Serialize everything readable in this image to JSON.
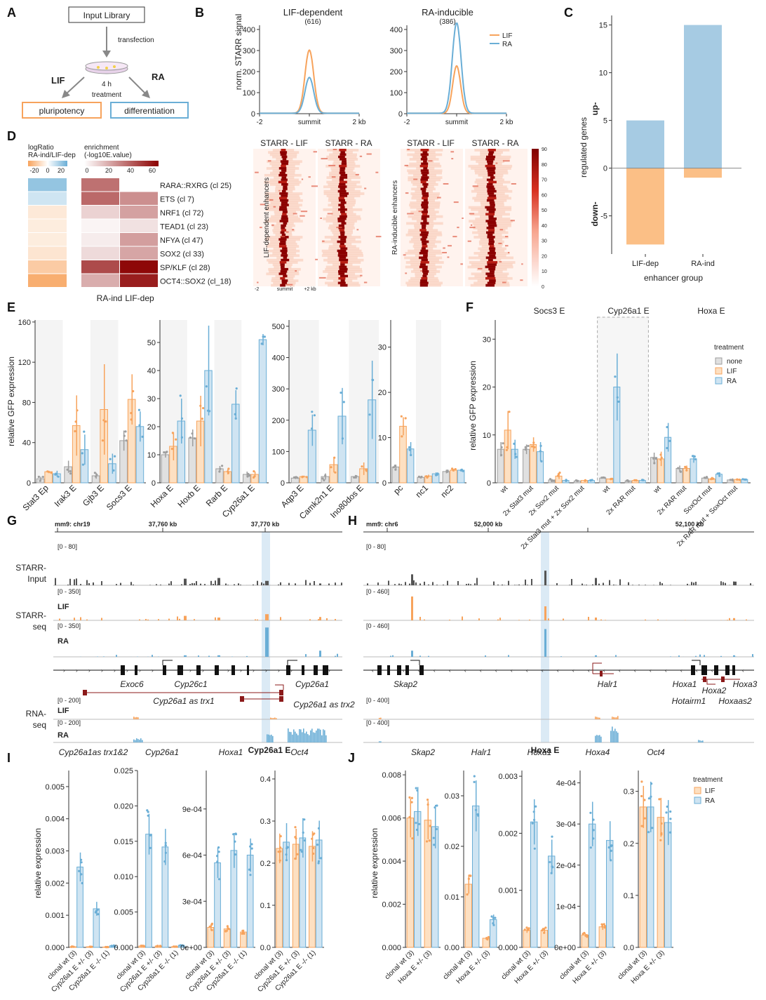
{
  "colors": {
    "lif": "#f7a35c",
    "lif_fill": "#fde0c2",
    "ra": "#6aaed6",
    "ra_fill": "#cfe4f2",
    "none": "#9e9e9e",
    "none_fill": "#e0e0e0",
    "heat_dark": "#8b0000",
    "track_input": "#555555",
    "starr_red": "#a40000",
    "anti_red": "#8b1a1a"
  },
  "panelA": {
    "letter": "A",
    "input_library": "Input Library",
    "transfection": "transfection",
    "lif": "LIF",
    "ra": "RA",
    "treatment_time": "4 h",
    "treatment": "treatment",
    "pluripotency": "pluripotency",
    "differentiation": "differentiation"
  },
  "panelB": {
    "letter": "B",
    "ylabel": "norm. STARR signal",
    "left_title": "LIF-dependent",
    "left_count": "(616)",
    "right_title": "RA-inducible",
    "right_count": "(386)",
    "x_ticks": [
      "-2",
      "summit",
      "2 kb"
    ],
    "heat_titles": [
      "STARR - LIF",
      "STARR - RA",
      "STARR - LIF",
      "STARR - RA"
    ],
    "heat_ylabel_left": "LIF-dependent enhancers",
    "heat_ylabel_right": "RA-inducible enhancers",
    "heat_x_ticks": [
      "-2",
      "summit",
      "+2 kb"
    ],
    "colorbar_ticks": [
      "90",
      "80",
      "70",
      "60",
      "50",
      "40",
      "30",
      "20",
      "10",
      "0"
    ]
  },
  "panelC": {
    "letter": "C",
    "ylabel": "regulated genes",
    "up": "up-",
    "down": "down-",
    "xlabel": "enhancer group"
  },
  "panelD": {
    "letter": "D",
    "legend1_title_1": "logRatio",
    "legend1_title_2": "RA-ind/LIF-dep",
    "legend1_ticks": [
      "-20",
      "0",
      "20"
    ],
    "legend2_title_1": "enrichment",
    "legend2_title_2": "(-log10E.value)",
    "legend2_ticks": [
      "0",
      "20",
      "40",
      "60"
    ],
    "col_labels": [
      "RA-ind",
      "LIF-dep"
    ],
    "motifs": [
      "RARA::RXRG (cl 25)",
      "ETS (cl 7)",
      "NRF1 (cl 72)",
      "TEAD1 (cl 23)",
      "NFYA (cl 47)",
      "SOX2 (cl 33)",
      "SP/KLF (cl 28)",
      "OCT4::SOX2 (cl_18)"
    ],
    "logratio": [
      18,
      8,
      -6,
      -5,
      -5,
      -7,
      -14,
      -22
    ],
    "enrich_ra": [
      38,
      40,
      12,
      3,
      5,
      10,
      48,
      22
    ],
    "enrich_lif": [
      0,
      30,
      25,
      8,
      26,
      24,
      66,
      60
    ]
  },
  "panelE": {
    "letter": "E",
    "ylabel": "relative GFP expression"
  },
  "panelF": {
    "letter": "F",
    "ylabel": "relative GFP expression",
    "group_titles": [
      "Socs3 E",
      "Cyp26a1 E",
      "Hoxa E"
    ],
    "legend_title": "treatment",
    "legend_items": [
      "none",
      "LIF",
      "RA"
    ]
  },
  "panelG": {
    "letter": "G",
    "genome": "mm9: chr19",
    "coords": [
      "37,760 kb",
      "37,770 kb"
    ],
    "track_labels": [
      "STARR-",
      "Input",
      "STARR-",
      "seq",
      "LIF",
      "RA",
      "RNA-",
      "seq",
      "LIF",
      "RA"
    ],
    "ranges": [
      "[0 - 80]",
      "[0 - 350]",
      "[0 - 350]",
      "[0 - 200]",
      "[0 - 200]"
    ],
    "genes": [
      "Exoc6",
      "Cyp26c1",
      "Cyp26a1"
    ],
    "antisense": [
      "Cyp26a1 as trx1",
      "Cyp26a1 as trx2"
    ],
    "highlight_label": "Cyp26a1 E"
  },
  "panelH": {
    "letter": "H",
    "genome": "mm9: chr6",
    "coords": [
      "52,000 kb",
      "52,100 kb"
    ],
    "ranges": [
      "[0 - 80]",
      "[0 - 460]",
      "[0 - 460]",
      "[0 - 400]",
      "[0 - 400]"
    ],
    "genes": [
      "Skap2",
      "Halr1",
      "Hoxa1",
      "Hoxa2",
      "Hoxa3"
    ],
    "antisense": [
      "Hotairm1",
      "Hoxaas2"
    ],
    "highlight_label": "Hoxa E"
  },
  "panelI": {
    "letter": "I",
    "ylabel": "relative expression",
    "xcats": [
      "clonal wt (3)",
      "Cyp26a1 E +/- (3)",
      "Cyp26a1 E -/- (1)"
    ]
  },
  "panelJ": {
    "letter": "J",
    "ylabel": "relative expression",
    "xcats": [
      "clonal wt (3)",
      "Hoxa E +/- (3)"
    ],
    "legend_title": "treatment",
    "legend_items": [
      "LIF",
      "RA"
    ]
  },
  "chart_data": [
    {
      "panel": "B-left",
      "type": "line",
      "title": "LIF-dependent",
      "subtitle": "(616)",
      "ylabel": "norm. STARR signal",
      "ylim": [
        0,
        420
      ],
      "yticks": [
        0,
        100,
        200,
        300,
        400
      ],
      "x_ticks": [
        "-2",
        "summit",
        "2 kb"
      ],
      "series": [
        {
          "name": "LIF",
          "peak": 300,
          "width": 0.22
        },
        {
          "name": "RA",
          "peak": 170,
          "width": 0.22
        }
      ]
    },
    {
      "panel": "B-right",
      "type": "line",
      "title": "RA-inducible",
      "subtitle": "(386)",
      "ylim": [
        0,
        420
      ],
      "yticks": [
        0,
        100,
        200,
        300,
        400
      ],
      "x_ticks": [
        "-2",
        "summit",
        "2 kb"
      ],
      "series": [
        {
          "name": "LIF",
          "peak": 225,
          "width": 0.2
        },
        {
          "name": "RA",
          "peak": 430,
          "width": 0.22
        }
      ]
    },
    {
      "panel": "C",
      "type": "bar",
      "ylabel": "regulated genes",
      "xlabel": "enhancer group",
      "categories": [
        "LIF-dep",
        "RA-ind"
      ],
      "ylim": [
        -9,
        16
      ],
      "yticks": [
        -5,
        0,
        5,
        10,
        15
      ],
      "series": [
        {
          "name": "up-",
          "values": [
            5,
            15
          ]
        },
        {
          "name": "down-",
          "values": [
            -8,
            -1
          ]
        }
      ]
    },
    {
      "panel": "E1",
      "type": "bar",
      "ylim": [
        0,
        162
      ],
      "yticks": [
        0,
        40,
        80,
        120,
        160
      ],
      "categories": [
        "Stat3 Ep",
        "Irak3 E",
        "Gjb3 E",
        "Socs3 E"
      ],
      "shaded": [
        0,
        2
      ],
      "series": [
        {
          "name": "none",
          "values": [
            4,
            16,
            7,
            42
          ],
          "err": [
            2,
            6,
            3,
            10
          ]
        },
        {
          "name": "LIF",
          "values": [
            11,
            57,
            73,
            83
          ],
          "err": [
            1,
            30,
            45,
            25
          ]
        },
        {
          "name": "RA",
          "values": [
            9,
            33,
            19,
            56
          ],
          "err": [
            3,
            15,
            10,
            15
          ]
        }
      ]
    },
    {
      "panel": "E2",
      "type": "bar",
      "ylim": [
        0,
        58
      ],
      "yticks": [
        0,
        10,
        20,
        30,
        40,
        50
      ],
      "categories": [
        "Hoxa E",
        "Hoxb E",
        "Rarb E",
        "Cyp26a1 E"
      ],
      "shaded": [
        0,
        2
      ],
      "series": [
        {
          "name": "none",
          "values": [
            10,
            16,
            5,
            3
          ],
          "err": [
            1,
            3,
            1,
            1
          ]
        },
        {
          "name": "LIF",
          "values": [
            13,
            22,
            4,
            3
          ],
          "err": [
            5,
            9,
            1,
            1
          ]
        },
        {
          "name": "RA",
          "values": [
            22,
            40,
            28,
            51
          ],
          "err": [
            8,
            16,
            5,
            2
          ]
        }
      ]
    },
    {
      "panel": "E3",
      "type": "bar",
      "ylim": [
        0,
        520
      ],
      "yticks": [
        0,
        100,
        200,
        300,
        400,
        500
      ],
      "categories": [
        "Aqp3 E",
        "Camk2n1 E",
        "Ino80dos E"
      ],
      "shaded": [
        0,
        2
      ],
      "series": [
        {
          "name": "none",
          "values": [
            15,
            20,
            20
          ],
          "err": [
            3,
            10,
            5
          ]
        },
        {
          "name": "LIF",
          "values": [
            20,
            58,
            45
          ],
          "err": [
            3,
            25,
            20
          ]
        },
        {
          "name": "RA",
          "values": [
            168,
            213,
            265
          ],
          "err": [
            50,
            90,
            125
          ]
        }
      ]
    },
    {
      "panel": "E4",
      "type": "bar",
      "ylim": [
        0,
        36
      ],
      "yticks": [
        0,
        10,
        20,
        30
      ],
      "categories": [
        "pc",
        "nc1",
        "nc2"
      ],
      "shaded": [
        1
      ],
      "series": [
        {
          "name": "none",
          "values": [
            3.5,
            1.2,
            2.5
          ],
          "err": [
            0.5,
            0.2,
            0.4
          ]
        },
        {
          "name": "LIF",
          "values": [
            12.5,
            1.5,
            2.8
          ],
          "err": [
            2,
            0.3,
            0.3
          ]
        },
        {
          "name": "RA",
          "values": [
            7.5,
            2,
            2.8
          ],
          "err": [
            1.5,
            0.3,
            0.3
          ]
        }
      ]
    },
    {
      "panel": "F",
      "type": "bar",
      "ylabel": "relative GFP expression",
      "ylim": [
        0,
        34
      ],
      "yticks": [
        0,
        10,
        20,
        30
      ],
      "categories": [
        "wt",
        "2x Stat3 mut",
        "2x Sox2 mut",
        "2x Stat3 mut + 2x Sox2 mut",
        "wt",
        "2x RAR mut",
        "wt",
        "2x RAR mut",
        "SoxOct mut",
        "2x RAR mut + SoxOct mut"
      ],
      "groups": [
        {
          "name": "Socs3 E",
          "from": 0,
          "to": 3
        },
        {
          "name": "Cyp26a1 E",
          "from": 4,
          "to": 5
        },
        {
          "name": "Hoxa E",
          "from": 6,
          "to": 9
        }
      ],
      "series": [
        {
          "name": "none",
          "values": [
            7,
            7,
            0.6,
            0.4,
            1,
            0.4,
            5.3,
            3,
            1,
            0.6
          ],
          "err": [
            1.5,
            1,
            0.2,
            0.1,
            0.1,
            0.1,
            1,
            0.6,
            0.2,
            0.1
          ]
        },
        {
          "name": "LIF",
          "values": [
            11,
            8,
            1.4,
            0.5,
            0.8,
            0.5,
            5,
            3,
            0.8,
            0.7
          ],
          "err": [
            4,
            1.5,
            0.6,
            0.1,
            0.1,
            0.1,
            1.5,
            0.6,
            0.2,
            0.1
          ]
        },
        {
          "name": "RA",
          "values": [
            7,
            6.5,
            0.5,
            0.5,
            20,
            0.5,
            9.5,
            5,
            1.8,
            0.7
          ],
          "err": [
            2,
            2,
            0.1,
            0.1,
            7,
            0.1,
            3,
            0.8,
            0.4,
            0.1
          ]
        }
      ]
    },
    {
      "panel": "I",
      "type": "bar",
      "ylabel": "relative expression",
      "categories": [
        "clonal wt (3)",
        "Cyp26a1 E +/- (3)",
        "Cyp26a1 E -/- (1)"
      ],
      "subplots": [
        {
          "gene": "Cyp26a1as trx1&2",
          "ylim": [
            0,
            0.0055
          ],
          "yticks": [
            "0.000",
            "0.001",
            "0.002",
            "0.003",
            "0.004",
            "0.005"
          ],
          "ytick_values": [
            0,
            0.001,
            0.002,
            0.003,
            0.004,
            0.005
          ],
          "LIF": [
            2e-05,
            2e-05,
            1e-05
          ],
          "RA": [
            0.0025,
            0.0012,
            5e-05
          ]
        },
        {
          "gene": "Cyp26a1",
          "ylim": [
            0,
            0.025
          ],
          "yticks": [
            "0.000",
            "0.005",
            "0.010",
            "0.015",
            "0.020",
            "0.025"
          ],
          "ytick_values": [
            0,
            0.005,
            0.01,
            0.015,
            0.02,
            0.025
          ],
          "LIF": [
            0.0002,
            0.0002,
            0.0001
          ],
          "RA": [
            0.016,
            0.0142,
            0.0003
          ]
        },
        {
          "gene": "Hoxa1",
          "ylim": [
            0,
            0.00115
          ],
          "yticks": [
            "0e+00",
            "3e-04",
            "6e-04",
            "9e-04"
          ],
          "ytick_values": [
            0,
            0.0003,
            0.0006,
            0.0009
          ],
          "LIF": [
            0.00013,
            0.00012,
            0.0001
          ],
          "RA": [
            0.00055,
            0.00063,
            0.0006
          ]
        },
        {
          "gene": "Oct4",
          "ylim": [
            0,
            0.42
          ],
          "yticks": [
            "0.0",
            "0.1",
            "0.2",
            "0.3",
            "0.4"
          ],
          "ytick_values": [
            0,
            0.1,
            0.2,
            0.3,
            0.4
          ],
          "LIF": [
            0.235,
            0.245,
            0.24
          ],
          "RA": [
            0.25,
            0.26,
            0.255
          ]
        }
      ]
    },
    {
      "panel": "J",
      "type": "bar",
      "ylabel": "relative expression",
      "categories": [
        "clonal wt (3)",
        "Hoxa E +/- (3)"
      ],
      "subplots": [
        {
          "gene": "Skap2",
          "ylim": [
            0,
            0.0082
          ],
          "yticks": [
            "0.000",
            "0.002",
            "0.004",
            "0.006",
            "0.008"
          ],
          "ytick_values": [
            0,
            0.002,
            0.004,
            0.006,
            0.008
          ],
          "LIF": [
            0.006,
            0.0059
          ],
          "RA": [
            0.0063,
            0.0056
          ]
        },
        {
          "gene": "Halr1",
          "ylim": [
            0,
            0.035
          ],
          "yticks": [
            "0.00",
            "0.01",
            "0.02",
            "0.03"
          ],
          "ytick_values": [
            0,
            0.01,
            0.02,
            0.03
          ],
          "LIF": [
            0.0125,
            0.0018
          ],
          "RA": [
            0.028,
            0.0055
          ]
        },
        {
          "gene": "Hoxa1",
          "ylim": [
            0,
            0.0031
          ],
          "yticks": [
            "0.000",
            "0.001",
            "0.002",
            "0.003"
          ],
          "ytick_values": [
            0,
            0.001,
            0.002,
            0.003
          ],
          "LIF": [
            0.0003,
            0.0003
          ],
          "RA": [
            0.0022,
            0.0016
          ]
        },
        {
          "gene": "Hoxa4",
          "ylim": [
            0,
            0.00043
          ],
          "yticks": [
            "0e+00",
            "1e-04",
            "2e-04",
            "3e-04",
            "4e-04"
          ],
          "ytick_values": [
            0,
            0.0001,
            0.0002,
            0.0003,
            0.0004
          ],
          "LIF": [
            3e-05,
            5e-05
          ],
          "RA": [
            0.0003,
            0.00026
          ]
        },
        {
          "gene": "Oct4",
          "ylim": [
            0,
            0.34
          ],
          "yticks": [
            "0.0",
            "0.1",
            "0.2",
            "0.3"
          ],
          "ytick_values": [
            0,
            0.1,
            0.2,
            0.3
          ],
          "LIF": [
            0.27,
            0.25
          ],
          "RA": [
            0.27,
            0.24
          ]
        }
      ]
    }
  ]
}
